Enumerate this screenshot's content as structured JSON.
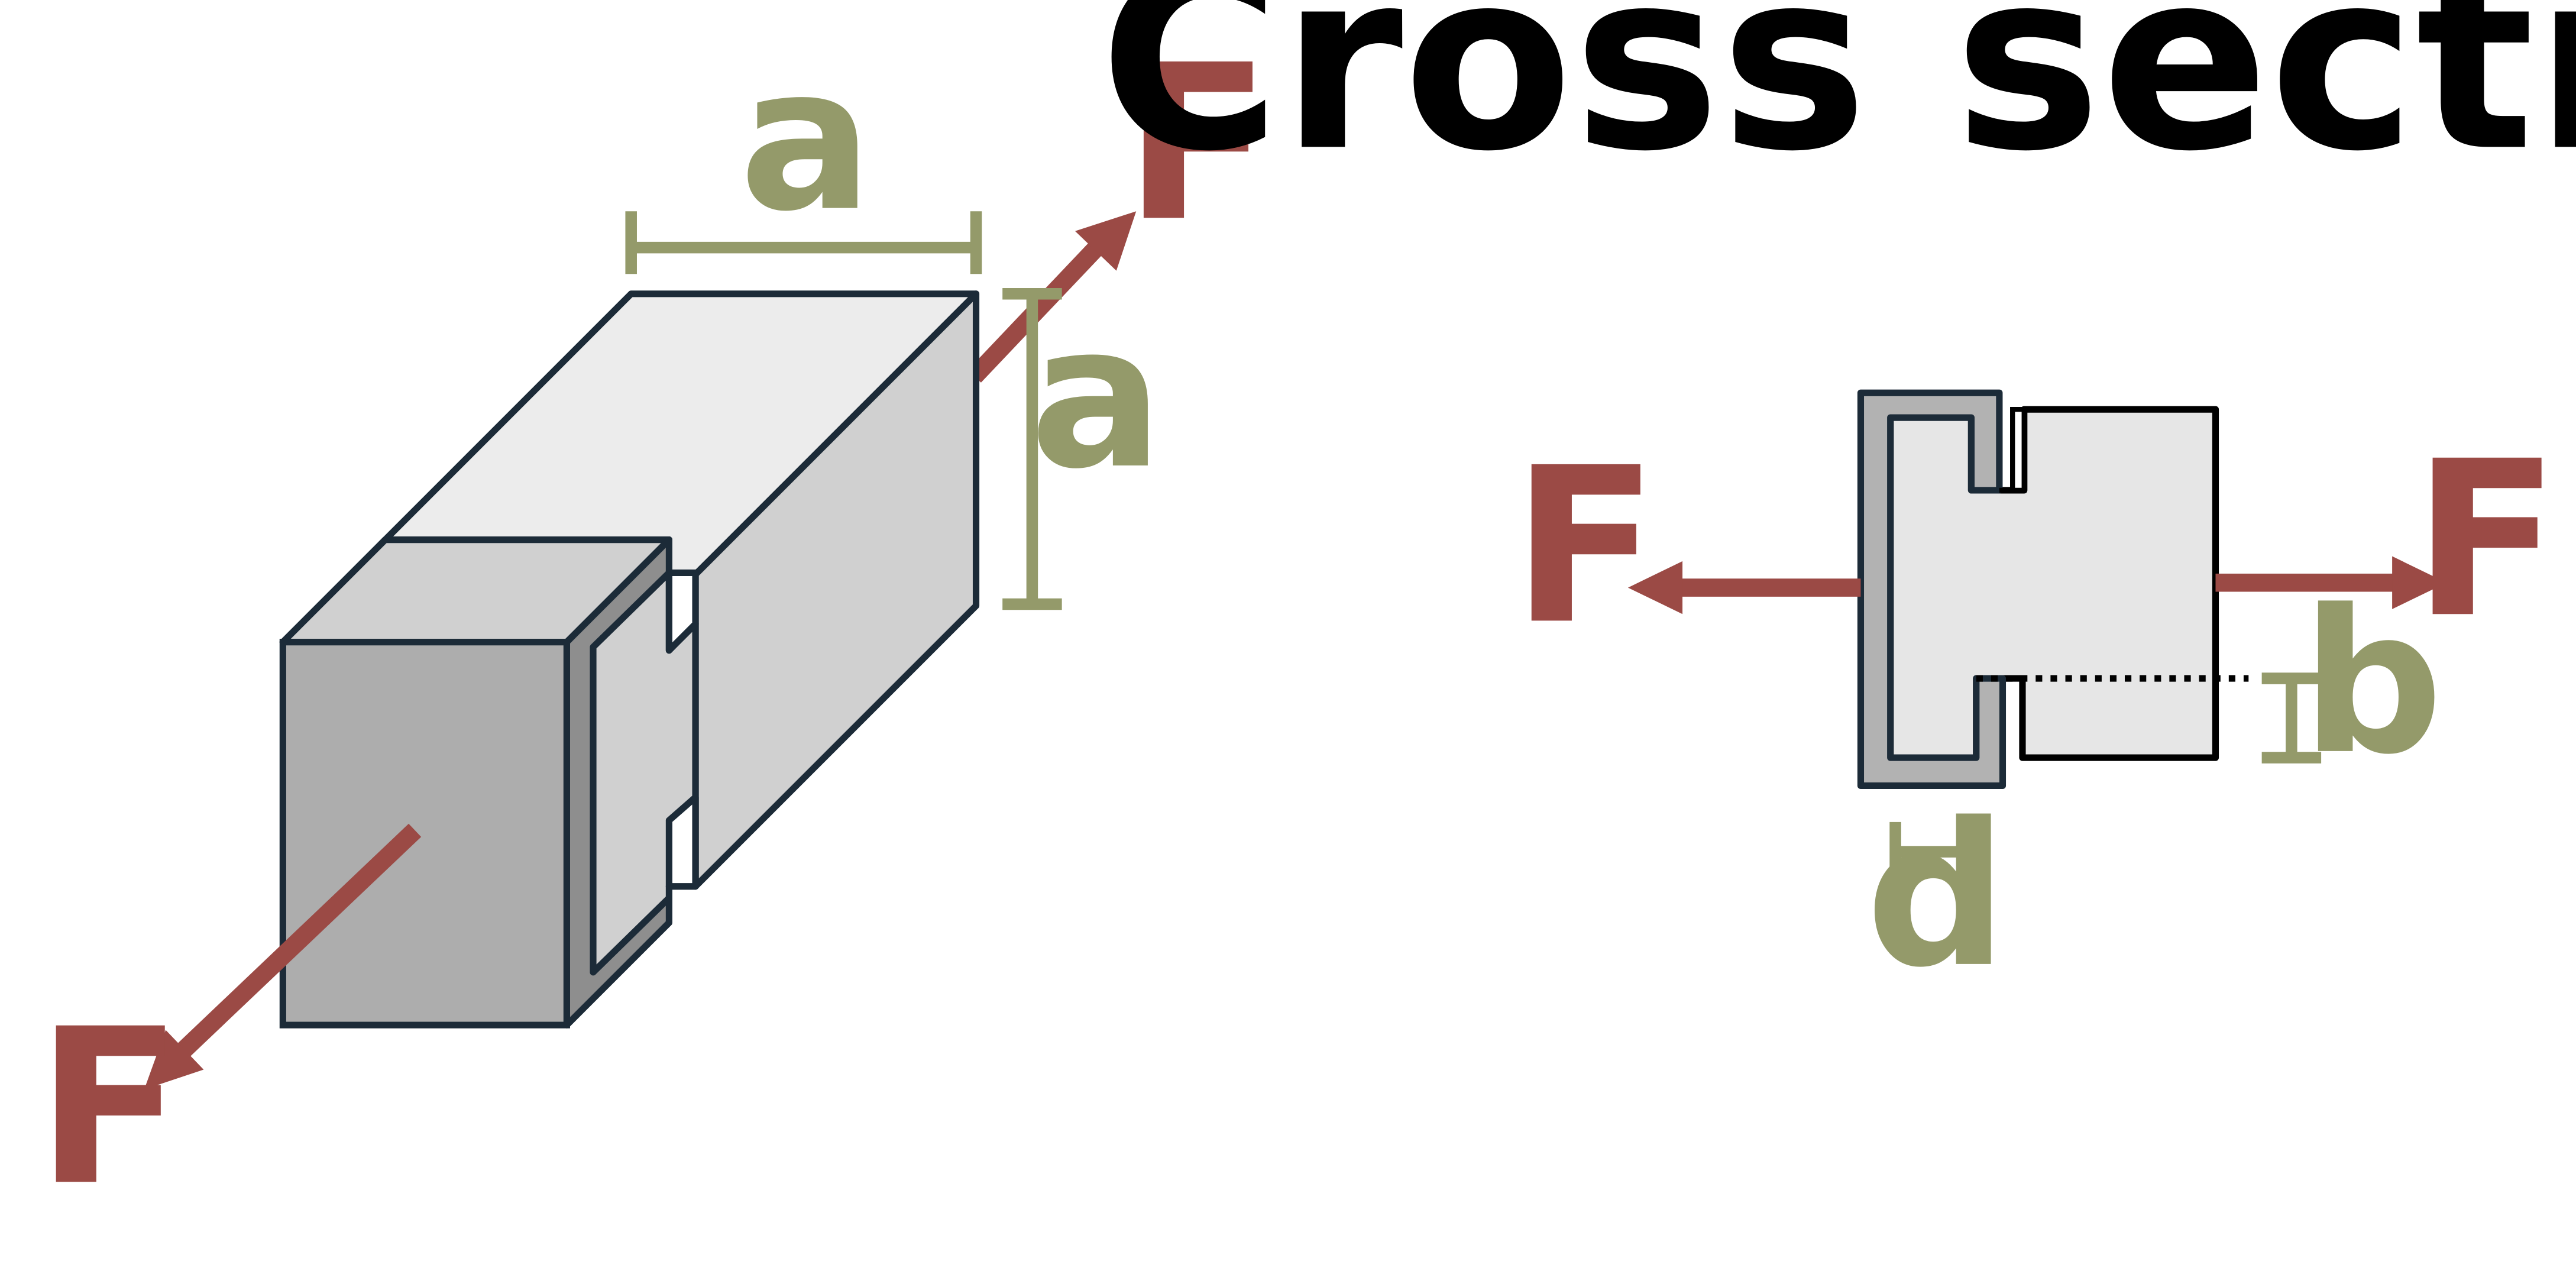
{
  "title": "Cross section",
  "labels": {
    "a_top": "a",
    "a_side": "a",
    "b": "b",
    "d": "d",
    "force": "F"
  },
  "colors": {
    "force": "#9b4a45",
    "dimension": "#949a6a",
    "outline": "#1c2b38",
    "block_front": "#adadad",
    "block_top": "#ececec",
    "block_side": "#d0d0d0",
    "slot_dark": "#8e8e8e",
    "cross_bracket": "#b2b2b2",
    "cross_block": "#e6e6e6",
    "background": "#ffffff"
  }
}
